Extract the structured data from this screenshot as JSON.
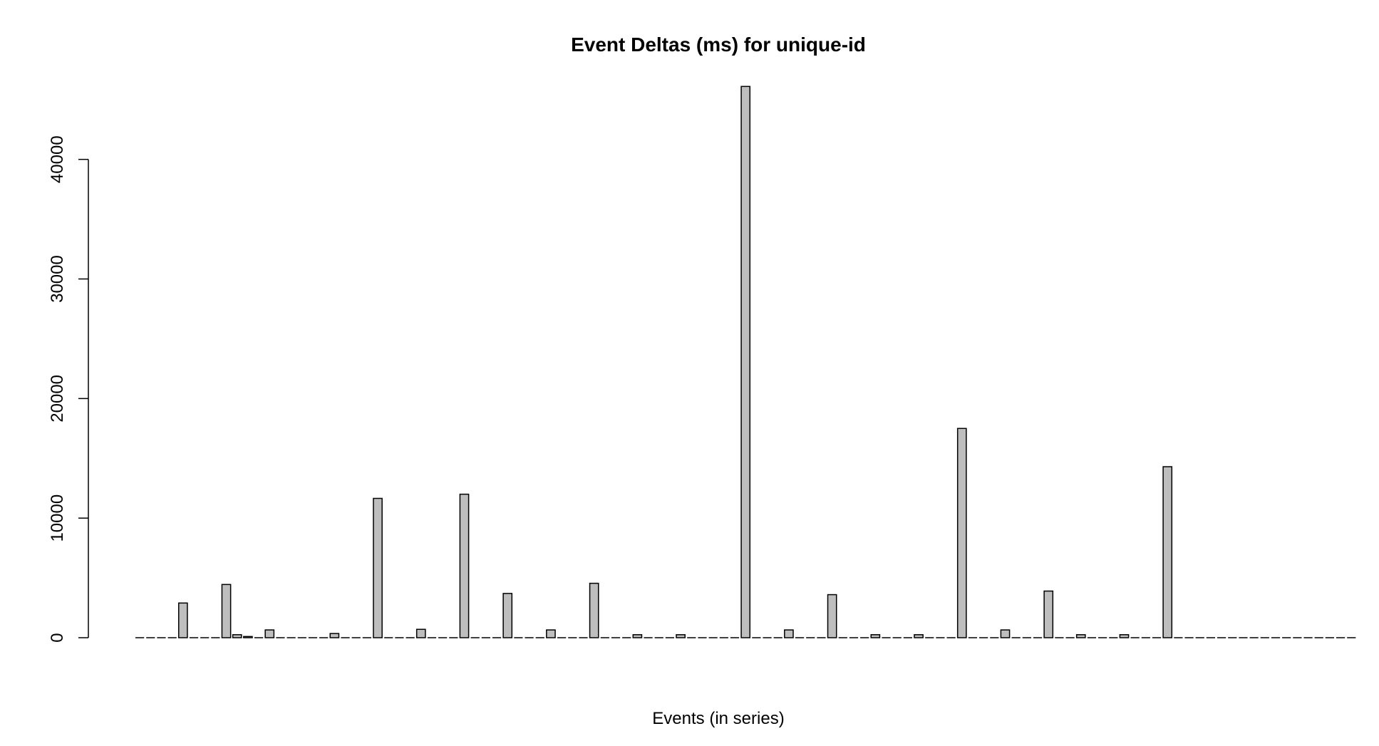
{
  "chart_data": {
    "type": "bar",
    "title": "Event Deltas (ms) for unique-id",
    "xlabel": "Events (in series)",
    "ylabel": "",
    "ylim": [
      0,
      46000
    ],
    "yticks": [
      0,
      10000,
      20000,
      30000,
      40000
    ],
    "yticklabels": [
      "0",
      "10000",
      "20000",
      "30000",
      "40000"
    ],
    "grid": false,
    "legend": "none",
    "bar_color": "#bebebe",
    "values": [
      0,
      0,
      0,
      0,
      2900,
      0,
      0,
      0,
      4450,
      250,
      100,
      0,
      650,
      0,
      0,
      0,
      0,
      0,
      350,
      0,
      0,
      0,
      11650,
      0,
      0,
      0,
      700,
      0,
      0,
      0,
      12000,
      0,
      0,
      0,
      3700,
      0,
      0,
      0,
      650,
      0,
      0,
      0,
      4550,
      0,
      0,
      0,
      250,
      0,
      0,
      0,
      250,
      0,
      0,
      0,
      0,
      0,
      46100,
      0,
      0,
      0,
      650,
      0,
      0,
      0,
      3600,
      0,
      0,
      0,
      250,
      0,
      0,
      0,
      250,
      0,
      0,
      0,
      17500,
      0,
      0,
      0,
      650,
      0,
      0,
      0,
      3900,
      0,
      0,
      250,
      0,
      0,
      0,
      250,
      0,
      0,
      0,
      14300,
      0,
      0,
      0,
      0,
      0,
      0,
      0,
      0,
      0,
      0,
      0,
      0,
      0,
      0,
      0,
      0,
      0
    ]
  }
}
